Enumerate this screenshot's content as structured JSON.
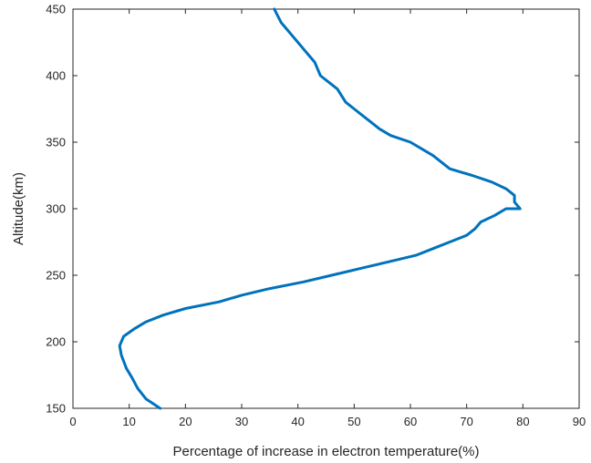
{
  "chart_data": {
    "type": "line",
    "title": "",
    "xlabel": "Percentage of increase in electron temperature(%)",
    "ylabel": "Altitude(km)",
    "xlim": [
      0,
      90
    ],
    "ylim": [
      150,
      450
    ],
    "x_ticks": [
      "0",
      "10",
      "20",
      "30",
      "40",
      "50",
      "60",
      "70",
      "80",
      "90"
    ],
    "y_ticks": [
      "150",
      "200",
      "250",
      "300",
      "350",
      "400",
      "450"
    ],
    "grid": false,
    "box": true,
    "line_color": "#0072BD",
    "series": [
      {
        "x": [
          15.5,
          13,
          11.5,
          10.5,
          9.5,
          8.6,
          8.3,
          9,
          11,
          13,
          16,
          20,
          26,
          30,
          35,
          41,
          46,
          51,
          56,
          61,
          64,
          67,
          70,
          71.5,
          72.5,
          75,
          77,
          78.5,
          79.5,
          78.5,
          77,
          74.5,
          71,
          67,
          64,
          60,
          56.5,
          54.5,
          53,
          51.5,
          50,
          48.5,
          47,
          45.5,
          44,
          43,
          42,
          41,
          40,
          39,
          38,
          37,
          35.8
        ],
        "y": [
          150,
          157,
          165,
          173,
          180,
          190,
          197,
          204,
          210,
          215,
          220,
          225,
          230,
          235,
          240,
          245,
          250,
          255,
          260,
          265,
          270,
          275,
          280,
          285,
          290,
          295,
          300,
          305,
          300,
          310,
          315,
          320,
          325,
          330,
          340,
          350,
          355,
          360,
          365,
          370,
          375,
          380,
          390,
          395,
          400,
          410,
          415,
          420,
          425,
          430,
          435,
          440,
          450
        ]
      }
    ]
  }
}
